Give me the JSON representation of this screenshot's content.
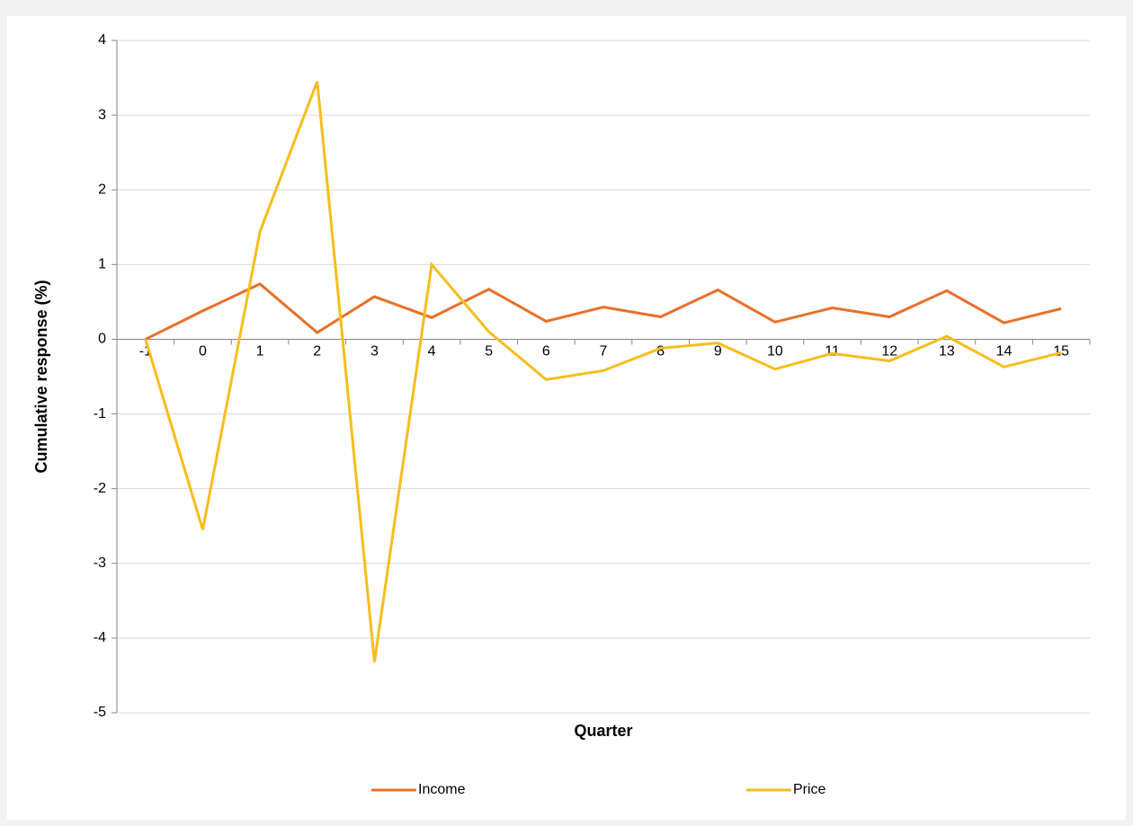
{
  "chart_data": {
    "type": "line",
    "x_label": "Quarter",
    "y_label": "Cumulative response (%)",
    "categories": [
      "-1",
      "0",
      "1",
      "2",
      "3",
      "4",
      "5",
      "6",
      "7",
      "8",
      "9",
      "10",
      "11",
      "12",
      "13",
      "14",
      "15"
    ],
    "series": [
      {
        "name": "Income",
        "color": "#e8702a",
        "values": [
          0,
          0.38,
          0.74,
          0.09,
          0.57,
          0.29,
          0.67,
          0.24,
          0.43,
          0.3,
          0.66,
          0.23,
          0.42,
          0.3,
          0.65,
          0.22,
          0.41
        ]
      },
      {
        "name": "Price",
        "color": "#f8bd1c",
        "values": [
          0,
          -2.55,
          1.44,
          3.45,
          -4.32,
          1.0,
          0.1,
          -0.54,
          -0.42,
          -0.12,
          -0.05,
          -0.4,
          -0.19,
          -0.29,
          0.04,
          -0.37,
          -0.18
        ]
      }
    ],
    "ylim": [
      -5,
      4
    ],
    "yticks": [
      -5,
      -4,
      -3,
      -2,
      -1,
      0,
      1,
      2,
      3,
      4
    ],
    "grid": true,
    "legend": "bottom"
  }
}
